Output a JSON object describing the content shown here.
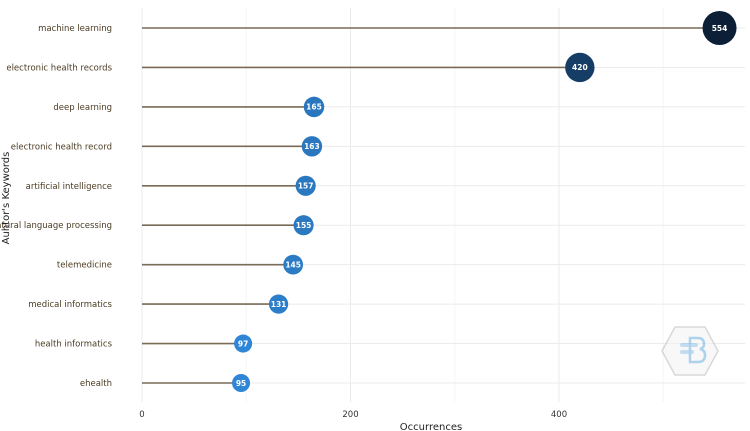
{
  "chart_data": {
    "type": "lollipop",
    "orientation": "horizontal",
    "categories": [
      "machine learning",
      "electronic health records",
      "deep learning",
      "electronic health record",
      "artificial intelligence",
      "natural language processing",
      "telemedicine",
      "medical informatics",
      "health informatics",
      "ehealth"
    ],
    "values": [
      554,
      420,
      165,
      163,
      157,
      155,
      145,
      131,
      97,
      95
    ],
    "xlabel": "Occurrences",
    "ylabel": "Auhtor's Keywords",
    "xlim": [
      0,
      580
    ],
    "xticks": [
      0,
      200,
      400
    ],
    "grid": true,
    "color_scale": {
      "low": "#2f86d6",
      "high": "#0c1f36"
    }
  },
  "watermark": {
    "icon": "bibliometrix-hexagon-logo"
  }
}
